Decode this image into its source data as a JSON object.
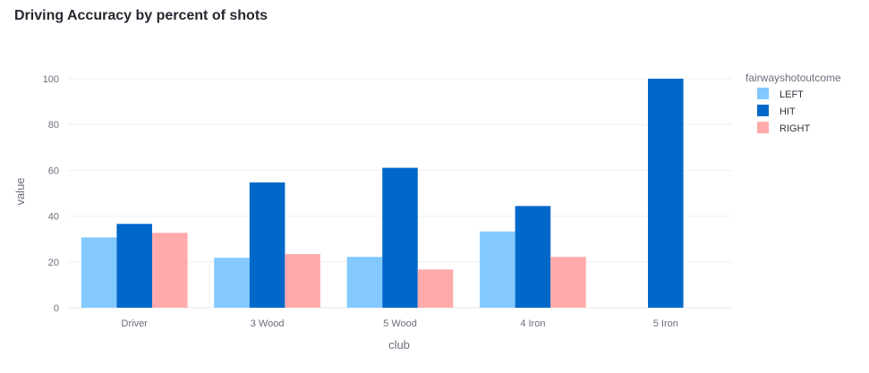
{
  "chart_data": {
    "type": "bar",
    "title": "Driving Accuracy by percent of shots",
    "xlabel": "club",
    "ylabel": "value",
    "categories": [
      "Driver",
      "3 Wood",
      "5 Wood",
      "4 Iron",
      "5 Iron"
    ],
    "series": [
      {
        "name": "LEFT",
        "color": "#83c9ff",
        "values": [
          30.7,
          21.8,
          22.2,
          33.3,
          0
        ]
      },
      {
        "name": "HIT",
        "color": "#0068c9",
        "values": [
          36.6,
          54.7,
          61.1,
          44.4,
          100
        ]
      },
      {
        "name": "RIGHT",
        "color": "#ffabab",
        "values": [
          32.7,
          23.4,
          16.7,
          22.2,
          0
        ]
      }
    ],
    "ylim": [
      0,
      100
    ],
    "yticks": [
      0,
      20,
      40,
      60,
      80,
      100
    ],
    "grid": true,
    "legend_title": "fairwayshotoutcome",
    "legend_position": "top-right"
  }
}
